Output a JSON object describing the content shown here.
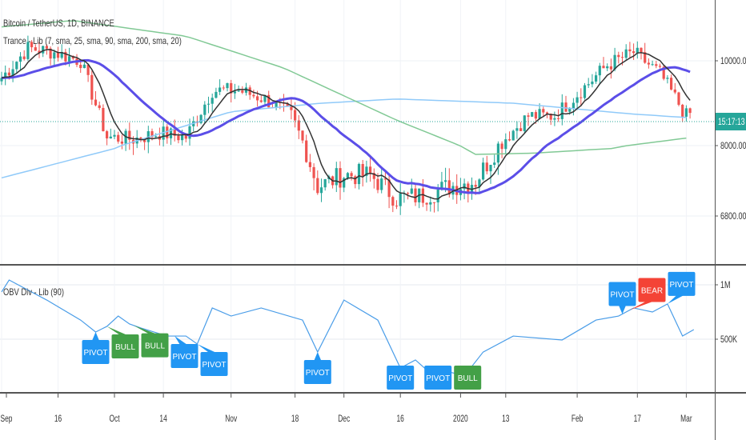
{
  "legend": {
    "symbol": "Bitcoin / TetherUS, 1D, BINANCE",
    "overlay": "Trance - Lib (7, sma, 25, sma, 90, sma, 200, sma, 20)",
    "indicator": "OBV Div - Lib (90)"
  },
  "colors": {
    "up": "#26a69a",
    "down": "#ef5350",
    "sma7": "#333333",
    "sma25": "#5b4ee8",
    "sma90": "#90caf9",
    "sma200": "#81c995",
    "obv": "#4a9de8",
    "pivot": "#2196f3",
    "bull": "#43a047",
    "bear": "#f44336",
    "price_tag": "#26a69a"
  },
  "chart_data": [
    {
      "type": "candlestick",
      "price_axis": {
        "ticks": [
          "10000.00",
          "8000.00",
          "6800.00"
        ],
        "current_label": "15:17:13"
      },
      "time_axis": {
        "ticks": [
          {
            "label": "Sep",
            "date": "2019-09-01"
          },
          {
            "label": "16",
            "date": "2019-09-16"
          },
          {
            "label": "Oct",
            "date": "2019-10-01"
          },
          {
            "label": "14",
            "date": "2019-10-14"
          },
          {
            "label": "Nov",
            "date": "2019-11-01"
          },
          {
            "label": "18",
            "date": "2019-11-18"
          },
          {
            "label": "Dec",
            "date": "2019-12-01"
          },
          {
            "label": "16",
            "date": "2019-12-16"
          },
          {
            "label": "2020",
            "date": "2020-01-01"
          },
          {
            "label": "13",
            "date": "2020-01-13"
          },
          {
            "label": "Feb",
            "date": "2020-02-01"
          },
          {
            "label": "17",
            "date": "2020-02-17"
          },
          {
            "label": "Mar",
            "date": "2020-03-01"
          }
        ]
      },
      "weekly_closes": [
        [
          "2019-09-01",
          9600
        ],
        [
          "2019-09-08",
          10300
        ],
        [
          "2019-09-15",
          10200
        ],
        [
          "2019-09-22",
          10000
        ],
        [
          "2019-09-29",
          8200
        ],
        [
          "2019-10-06",
          8150
        ],
        [
          "2019-10-13",
          8300
        ],
        [
          "2019-10-20",
          8200
        ],
        [
          "2019-10-27",
          9300
        ],
        [
          "2019-11-03",
          9300
        ],
        [
          "2019-11-10",
          9100
        ],
        [
          "2019-11-17",
          8700
        ],
        [
          "2019-11-24",
          7300
        ],
        [
          "2019-12-01",
          7500
        ],
        [
          "2019-12-08",
          7500
        ],
        [
          "2019-12-15",
          7100
        ],
        [
          "2019-12-22",
          7150
        ],
        [
          "2019-12-29",
          7300
        ],
        [
          "2020-01-05",
          7400
        ],
        [
          "2020-01-12",
          8100
        ],
        [
          "2020-01-19",
          8700
        ],
        [
          "2020-01-26",
          8700
        ],
        [
          "2020-02-02",
          9300
        ],
        [
          "2020-02-09",
          9900
        ],
        [
          "2020-02-16",
          10200
        ],
        [
          "2020-02-23",
          9700
        ],
        [
          "2020-03-01",
          8700
        ],
        [
          "2020-03-03",
          8800
        ]
      ],
      "sma90": [
        [
          "2019-09-01",
          7450
        ],
        [
          "2019-10-01",
          7950
        ],
        [
          "2019-11-01",
          8800
        ],
        [
          "2019-11-25",
          9000
        ],
        [
          "2019-12-15",
          9100
        ],
        [
          "2020-01-15",
          9000
        ],
        [
          "2020-02-15",
          8750
        ],
        [
          "2020-03-03",
          8650
        ]
      ],
      "sma200": [
        [
          "2019-09-01",
          10800
        ],
        [
          "2019-09-20",
          10950
        ],
        [
          "2019-10-20",
          10580
        ],
        [
          "2019-11-15",
          9830
        ],
        [
          "2019-12-15",
          8600
        ],
        [
          "2020-01-05",
          7850
        ],
        [
          "2020-01-20",
          7870
        ],
        [
          "2020-02-10",
          7950
        ],
        [
          "2020-03-03",
          8200
        ]
      ]
    },
    {
      "type": "line",
      "name": "OBV",
      "y_ticks": [
        "1M",
        "500K"
      ],
      "points": [
        [
          "2019-09-01",
          934000
        ],
        [
          "2019-09-03",
          1044000
        ],
        [
          "2019-09-13",
          860000
        ],
        [
          "2019-09-22",
          676000
        ],
        [
          "2019-09-26",
          566000
        ],
        [
          "2019-09-29",
          618000
        ],
        [
          "2019-10-02",
          713000
        ],
        [
          "2019-10-05",
          640000
        ],
        [
          "2019-10-08",
          603000
        ],
        [
          "2019-10-15",
          529000
        ],
        [
          "2019-10-20",
          529000
        ],
        [
          "2019-10-23",
          456000
        ],
        [
          "2019-10-27",
          787000
        ],
        [
          "2019-11-01",
          713000
        ],
        [
          "2019-11-09",
          787000
        ],
        [
          "2019-11-20",
          676000
        ],
        [
          "2019-11-24",
          382000
        ],
        [
          "2019-12-01",
          860000
        ],
        [
          "2019-12-10",
          676000
        ],
        [
          "2019-12-16",
          235000
        ],
        [
          "2019-12-20",
          309000
        ],
        [
          "2019-12-26",
          125000
        ],
        [
          "2019-12-29",
          199000
        ],
        [
          "2020-01-02",
          162000
        ],
        [
          "2020-01-07",
          382000
        ],
        [
          "2020-01-15",
          529000
        ],
        [
          "2020-01-28",
          493000
        ],
        [
          "2020-02-06",
          676000
        ],
        [
          "2020-02-12",
          713000
        ],
        [
          "2020-02-16",
          787000
        ],
        [
          "2020-02-21",
          750000
        ],
        [
          "2020-02-25",
          824000
        ],
        [
          "2020-02-29",
          529000
        ],
        [
          "2020-03-03",
          588000
        ]
      ],
      "markers": [
        {
          "date": "2019-09-26",
          "text": "PIVOT",
          "kind": "pivot",
          "side": "below"
        },
        {
          "date": "2019-09-29",
          "text": "BULL",
          "kind": "bull",
          "side": "below"
        },
        {
          "date": "2019-10-06",
          "text": "BULL",
          "kind": "bull",
          "side": "below"
        },
        {
          "date": "2019-10-17",
          "text": "PIVOT",
          "kind": "pivot",
          "side": "below"
        },
        {
          "date": "2019-10-23",
          "text": "PIVOT",
          "kind": "pivot",
          "side": "below"
        },
        {
          "date": "2019-11-24",
          "text": "PIVOT",
          "kind": "pivot",
          "side": "below"
        },
        {
          "date": "2019-12-16",
          "text": "PIVOT",
          "kind": "pivot",
          "side": "below"
        },
        {
          "date": "2019-12-26",
          "text": "PIVOT",
          "kind": "pivot",
          "side": "below"
        },
        {
          "date": "2020-01-01",
          "text": "BULL",
          "kind": "bull",
          "side": "below"
        },
        {
          "date": "2020-02-13",
          "text": "PIVOT",
          "kind": "pivot",
          "side": "above"
        },
        {
          "date": "2020-02-15",
          "text": "BEAR",
          "kind": "bear",
          "side": "above"
        },
        {
          "date": "2020-02-25",
          "text": "PIVOT",
          "kind": "pivot",
          "side": "above"
        }
      ]
    }
  ]
}
